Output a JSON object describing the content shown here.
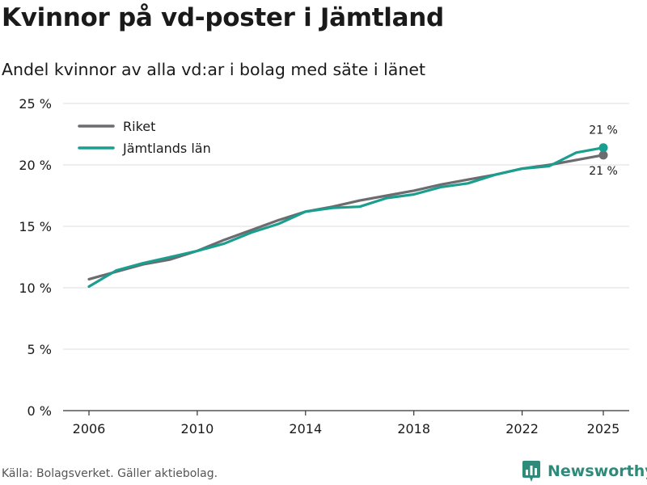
{
  "header": {
    "title": "Kvinnor på vd-poster i Jämtland",
    "subtitle": "Andel kvinnor av alla vd:ar i bolag med säte i länet"
  },
  "footer": {
    "source": "Källa: Bolagsverket. Gäller aktiebolag.",
    "brand": "Newsworthy",
    "brand_icon": "bar-chart-logo-icon"
  },
  "colors": {
    "riket": "#6b6b70",
    "jamtland": "#1a9e8f",
    "grid": "#dedede",
    "axis": "#333333",
    "brand": "#2e8b7a"
  },
  "chart_data": {
    "type": "line",
    "title": "Kvinnor på vd-poster i Jämtland",
    "subtitle": "Andel kvinnor av alla vd:ar i bolag med säte i länet",
    "xlabel": "",
    "ylabel": "",
    "x": [
      2006,
      2007,
      2008,
      2009,
      2010,
      2011,
      2012,
      2013,
      2014,
      2015,
      2016,
      2017,
      2018,
      2019,
      2020,
      2021,
      2022,
      2023,
      2024,
      2025
    ],
    "xticks": [
      2006,
      2010,
      2014,
      2018,
      2022,
      2025
    ],
    "xlim": [
      2006,
      2025
    ],
    "ylim": [
      0,
      25
    ],
    "yticks": [
      0,
      5,
      10,
      15,
      20,
      25
    ],
    "ytick_labels": [
      "0 %",
      "5 %",
      "10 %",
      "15 %",
      "20 %",
      "25 %"
    ],
    "grid": true,
    "legend": "top-left",
    "series": [
      {
        "name": "Riket",
        "key": "riket",
        "values": [
          10.7,
          11.3,
          11.9,
          12.3,
          13.0,
          13.9,
          14.7,
          15.5,
          16.2,
          16.6,
          17.1,
          17.5,
          17.9,
          18.4,
          18.8,
          19.2,
          19.7,
          20.0,
          20.4,
          20.8
        ],
        "end_label": "21 %"
      },
      {
        "name": "Jämtlands län",
        "key": "jamtland",
        "values": [
          10.1,
          11.4,
          12.0,
          12.5,
          13.0,
          13.6,
          14.5,
          15.2,
          16.2,
          16.5,
          16.6,
          17.3,
          17.6,
          18.2,
          18.5,
          19.2,
          19.7,
          19.9,
          21.0,
          21.4
        ],
        "end_label": "21 %"
      }
    ]
  }
}
